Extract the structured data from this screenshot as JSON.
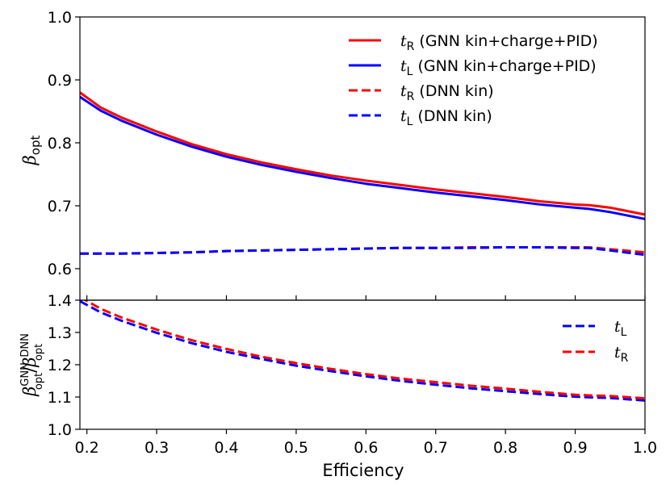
{
  "chart_data": [
    {
      "type": "line",
      "panel": "top",
      "ylabel_base": "β",
      "ylabel_sub": "opt",
      "xlim": [
        0.19,
        1.0
      ],
      "ylim": [
        0.55,
        1.0
      ],
      "yticks": [
        0.6,
        0.7,
        0.8,
        0.9,
        1.0
      ],
      "ytick_labels": [
        "0.6",
        "0.7",
        "0.8",
        "0.9",
        "1.0"
      ],
      "legend_position": "top-right",
      "x": [
        0.19,
        0.22,
        0.25,
        0.3,
        0.35,
        0.4,
        0.45,
        0.5,
        0.55,
        0.6,
        0.65,
        0.7,
        0.75,
        0.8,
        0.85,
        0.9,
        0.92,
        0.95,
        1.0
      ],
      "series": [
        {
          "name_main": "t",
          "name_sub": "R",
          "name_suffix": " (GNN kin+charge+PID)",
          "color": "#ff0000",
          "dash": "solid",
          "values": [
            0.88,
            0.856,
            0.84,
            0.818,
            0.798,
            0.782,
            0.769,
            0.758,
            0.748,
            0.74,
            0.733,
            0.726,
            0.72,
            0.714,
            0.707,
            0.702,
            0.701,
            0.697,
            0.686
          ]
        },
        {
          "name_main": "t",
          "name_sub": "L",
          "name_suffix": " (GNN kin+charge+PID)",
          "color": "#0000ff",
          "dash": "solid",
          "values": [
            0.873,
            0.851,
            0.835,
            0.813,
            0.794,
            0.778,
            0.765,
            0.754,
            0.744,
            0.735,
            0.728,
            0.721,
            0.715,
            0.709,
            0.702,
            0.697,
            0.695,
            0.69,
            0.679
          ]
        },
        {
          "name_main": "t",
          "name_sub": "R",
          "name_suffix": " (DNN kin)",
          "color": "#ff0000",
          "dash": "dashed",
          "values": [
            0.624,
            0.624,
            0.624,
            0.625,
            0.626,
            0.628,
            0.629,
            0.63,
            0.631,
            0.632,
            0.633,
            0.633,
            0.634,
            0.634,
            0.634,
            0.634,
            0.634,
            0.631,
            0.626
          ]
        },
        {
          "name_main": "t",
          "name_sub": "L",
          "name_suffix": " (DNN kin)",
          "color": "#0000ff",
          "dash": "dashed",
          "values": [
            0.624,
            0.624,
            0.624,
            0.625,
            0.626,
            0.628,
            0.629,
            0.63,
            0.631,
            0.632,
            0.633,
            0.633,
            0.633,
            0.634,
            0.634,
            0.633,
            0.633,
            0.629,
            0.622
          ]
        }
      ]
    },
    {
      "type": "line",
      "panel": "bottom",
      "xlabel": "Efficiency",
      "ylabel_base": "β",
      "ylabel_sub": "opt",
      "ylabel_sup_num": "GNN",
      "ylabel_sup_den": "DNN",
      "xlim": [
        0.19,
        1.0
      ],
      "ylim": [
        1.0,
        1.4
      ],
      "xticks": [
        0.2,
        0.3,
        0.4,
        0.5,
        0.6,
        0.7,
        0.8,
        0.9,
        1.0
      ],
      "xtick_labels": [
        "0.2",
        "0.3",
        "0.4",
        "0.5",
        "0.6",
        "0.7",
        "0.8",
        "0.9",
        "1.0"
      ],
      "yticks": [
        1.0,
        1.1,
        1.2,
        1.3,
        1.4
      ],
      "ytick_labels": [
        "1.0",
        "1.1",
        "1.2",
        "1.3",
        "1.4"
      ],
      "legend_position": "top-right",
      "x": [
        0.19,
        0.22,
        0.25,
        0.3,
        0.35,
        0.4,
        0.45,
        0.5,
        0.55,
        0.6,
        0.65,
        0.7,
        0.75,
        0.8,
        0.85,
        0.9,
        0.92,
        0.95,
        1.0
      ],
      "series": [
        {
          "name_main": "t",
          "name_sub": "L",
          "color": "#0000ff",
          "dash": "dashed",
          "values": [
            1.397,
            1.362,
            1.336,
            1.299,
            1.267,
            1.24,
            1.218,
            1.197,
            1.18,
            1.164,
            1.15,
            1.138,
            1.127,
            1.118,
            1.109,
            1.101,
            1.099,
            1.097,
            1.089
          ]
        },
        {
          "name_main": "t",
          "name_sub": "R",
          "color": "#ff0000",
          "dash": "dashed",
          "values": [
            1.41,
            1.373,
            1.346,
            1.309,
            1.276,
            1.249,
            1.225,
            1.205,
            1.187,
            1.171,
            1.157,
            1.146,
            1.135,
            1.126,
            1.116,
            1.107,
            1.105,
            1.103,
            1.096
          ]
        }
      ]
    }
  ]
}
